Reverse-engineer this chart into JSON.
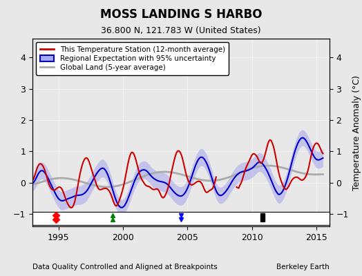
{
  "title": "MOSS LANDING S HARBO",
  "subtitle": "36.800 N, 121.783 W (United States)",
  "xlabel_bottom": "Data Quality Controlled and Aligned at Breakpoints",
  "xlabel_right": "Berkeley Earth",
  "ylabel": "Temperature Anomaly (°C)",
  "xlim": [
    1993.0,
    2016.0
  ],
  "ylim": [
    -1.4,
    4.6
  ],
  "yticks": [
    -1,
    0,
    1,
    2,
    3,
    4
  ],
  "xticks": [
    1995,
    2000,
    2005,
    2010,
    2015
  ],
  "background_color": "#e8e8e8",
  "plot_bg_color": "#e8e8e8",
  "red_line_color": "#cc0000",
  "blue_line_color": "#0000cc",
  "blue_fill_color": "#aaaaee",
  "gray_line_color": "#aaaaaa",
  "legend_items": [
    "This Temperature Station (12-month average)",
    "Regional Expectation with 95% uncertainty",
    "Global Land (5-year average)"
  ]
}
